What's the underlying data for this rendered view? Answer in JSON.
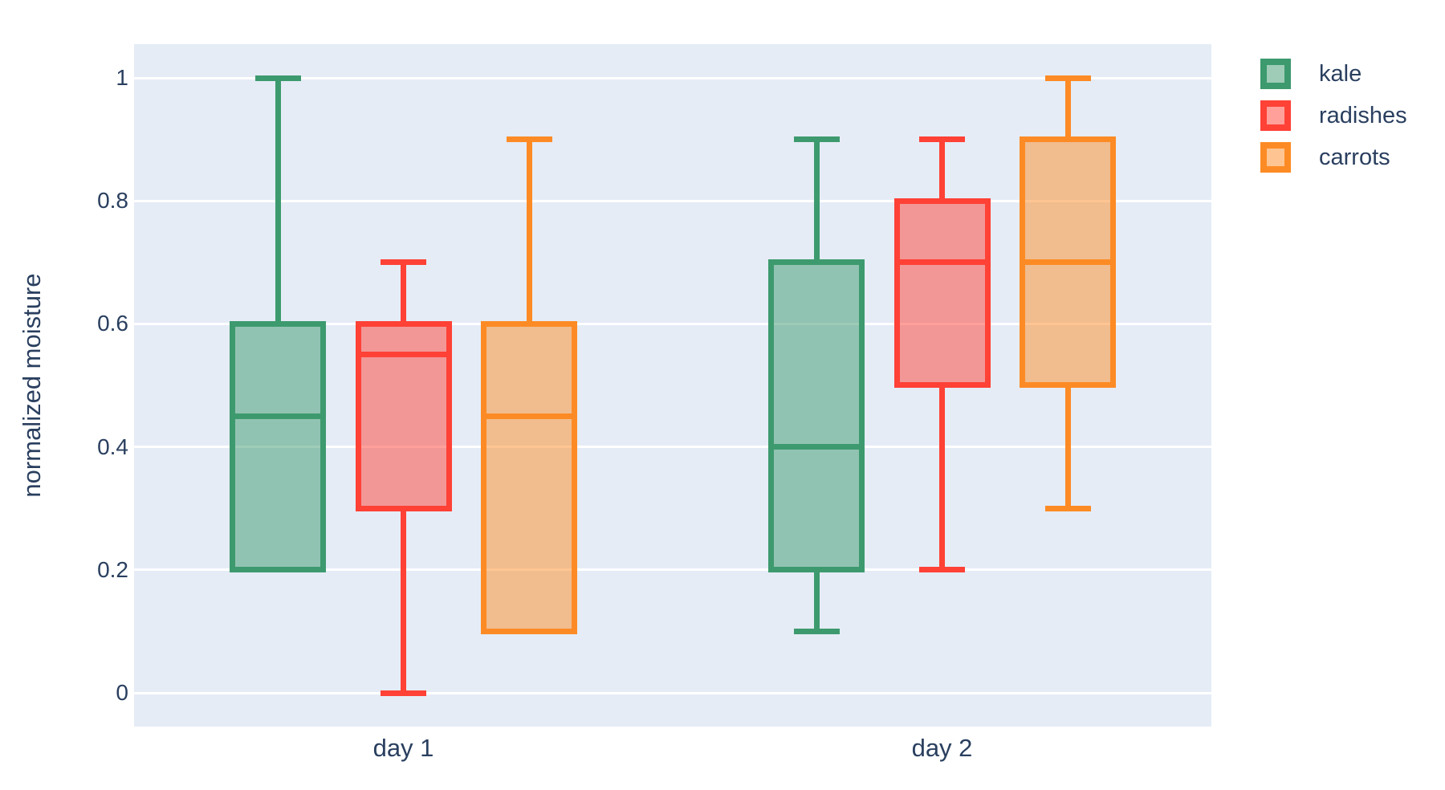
{
  "chart_data": {
    "type": "box",
    "title": "",
    "xlabel": "",
    "ylabel": "normalized moisture",
    "categories": [
      "day 1",
      "day 2"
    ],
    "ytick_values": [
      0,
      0.2,
      0.4,
      0.6,
      0.8,
      1
    ],
    "ytick_labels": [
      "0",
      "0.2",
      "0.4",
      "0.6",
      "0.8",
      "1"
    ],
    "ylim": [
      -0.055,
      1.055
    ],
    "grid": true,
    "boxmode": "group",
    "legend_position": "top-right-outside",
    "colors": {
      "paper_bg": "#ffffff",
      "plot_bg": "#e5ecf6",
      "gridline": "#ffffff",
      "text": "#2a3f5f"
    },
    "series": [
      {
        "name": "kale",
        "line_color": "#3d9a6e",
        "fill_color": "rgba(61,154,110,0.5)",
        "boxes": [
          {
            "category": "day 1",
            "min": 0.2,
            "q1": 0.2,
            "median": 0.45,
            "q3": 0.6,
            "max": 1.0
          },
          {
            "category": "day 2",
            "min": 0.1,
            "q1": 0.2,
            "median": 0.4,
            "q3": 0.7,
            "max": 0.9
          }
        ]
      },
      {
        "name": "radishes",
        "line_color": "#ff4136",
        "fill_color": "rgba(255,65,54,0.5)",
        "boxes": [
          {
            "category": "day 1",
            "min": 0.0,
            "q1": 0.3,
            "median": 0.55,
            "q3": 0.6,
            "max": 0.7
          },
          {
            "category": "day 2",
            "min": 0.2,
            "q1": 0.5,
            "median": 0.7,
            "q3": 0.8,
            "max": 0.9
          }
        ]
      },
      {
        "name": "carrots",
        "line_color": "#fd8b25",
        "fill_color": "rgba(253,139,37,0.5)",
        "boxes": [
          {
            "category": "day 1",
            "min": 0.1,
            "q1": 0.1,
            "median": 0.45,
            "q3": 0.6,
            "max": 0.9
          },
          {
            "category": "day 2",
            "min": 0.3,
            "q1": 0.5,
            "median": 0.7,
            "q3": 0.9,
            "max": 1.0
          }
        ]
      }
    ]
  }
}
